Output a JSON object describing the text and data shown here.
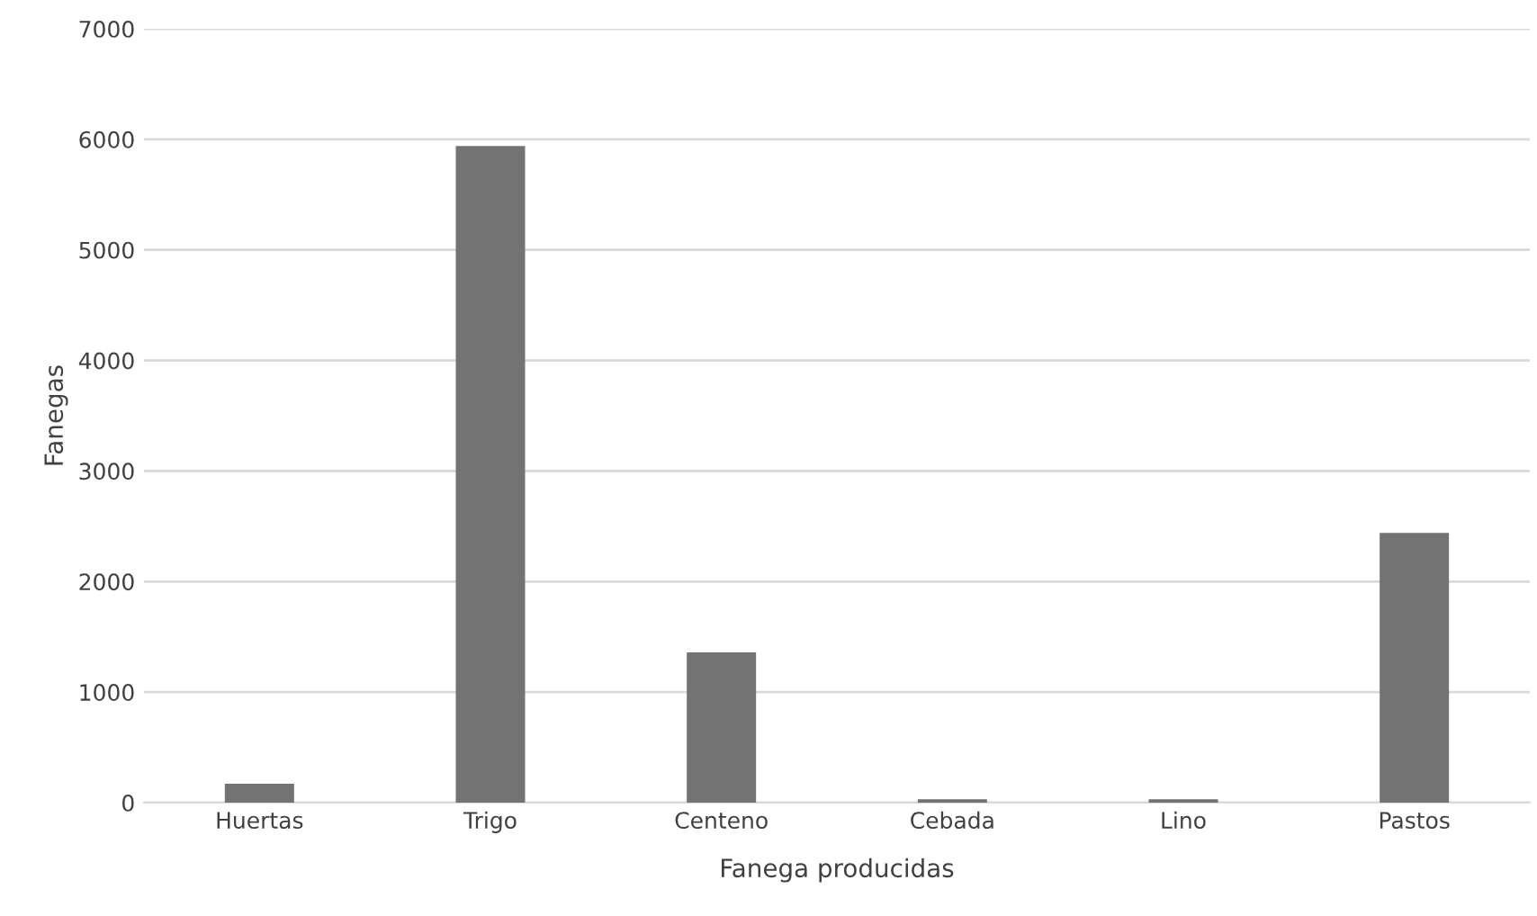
{
  "chart_data": {
    "type": "bar",
    "xlabel": "Fanega producidas",
    "ylabel": "Fanegas",
    "categories": [
      "Huertas",
      "Trigo",
      "Centeno",
      "Cebada",
      "Lino",
      "Pastos"
    ],
    "values": [
      170,
      5940,
      1360,
      30,
      30,
      2440
    ],
    "color": "#737373",
    "ylim": [
      0,
      7000
    ],
    "yticks": [
      0,
      1000,
      2000,
      3000,
      4000,
      5000,
      6000,
      7000
    ],
    "grid": "y",
    "legend": false
  }
}
